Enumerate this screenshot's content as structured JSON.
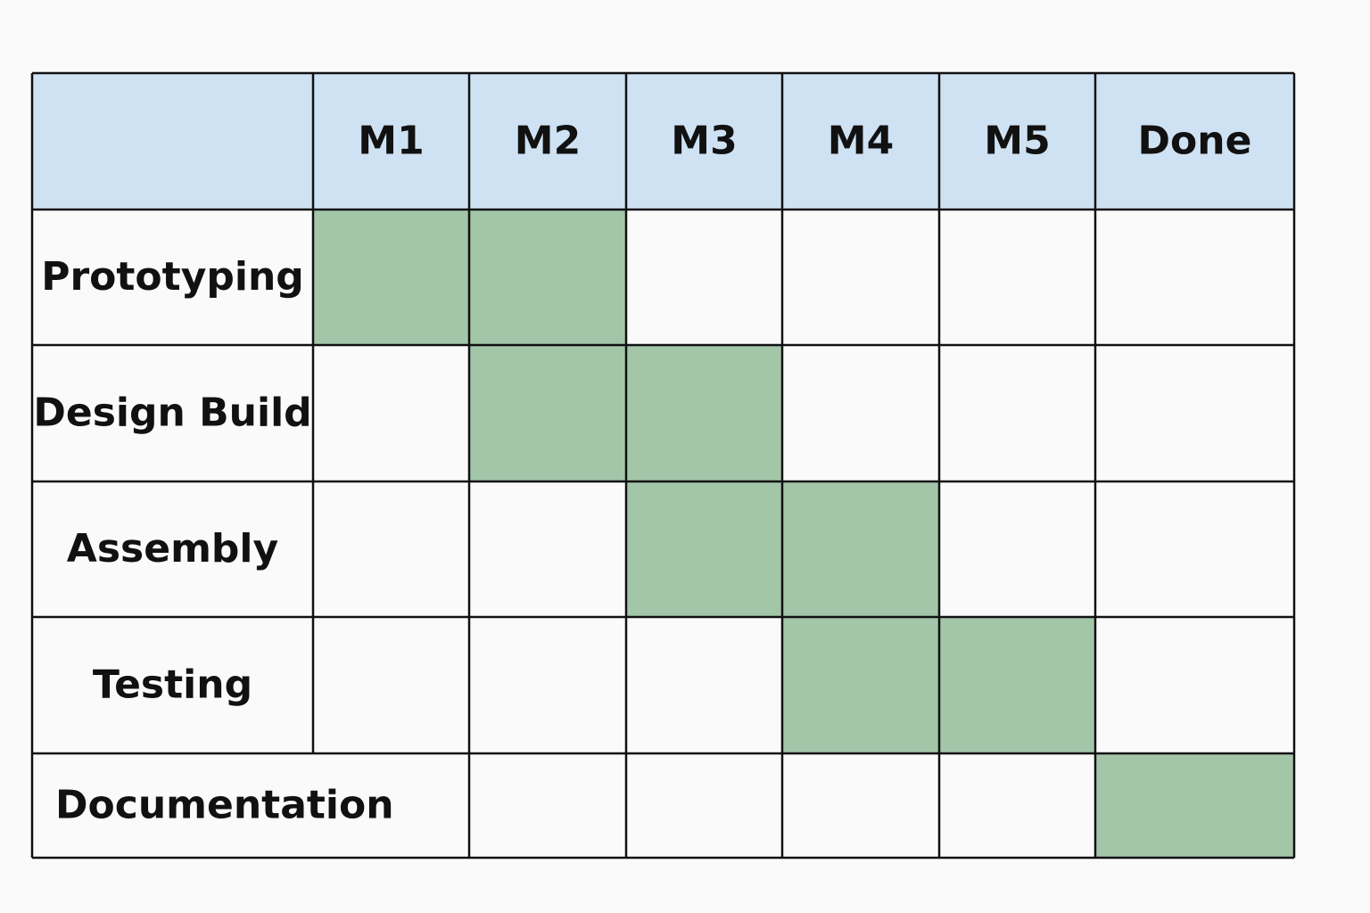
{
  "table": {
    "columns": [
      "M1",
      "M2",
      "M3",
      "M4",
      "M5",
      "Done"
    ],
    "rows": [
      {
        "label": "Prototyping",
        "cells": [
          true,
          true,
          false,
          false,
          false,
          false
        ]
      },
      {
        "label": "Design Build",
        "cells": [
          false,
          true,
          true,
          false,
          false,
          false
        ]
      },
      {
        "label": "Assembly",
        "cells": [
          false,
          false,
          true,
          true,
          false,
          false
        ]
      },
      {
        "label": "Testing",
        "cells": [
          false,
          false,
          false,
          true,
          true,
          false
        ]
      },
      {
        "label": "Documentation",
        "cells": [
          false,
          false,
          false,
          false,
          false,
          true
        ]
      }
    ],
    "header_color": "#cfe2f3",
    "fill_color": "#a3c6a9"
  }
}
